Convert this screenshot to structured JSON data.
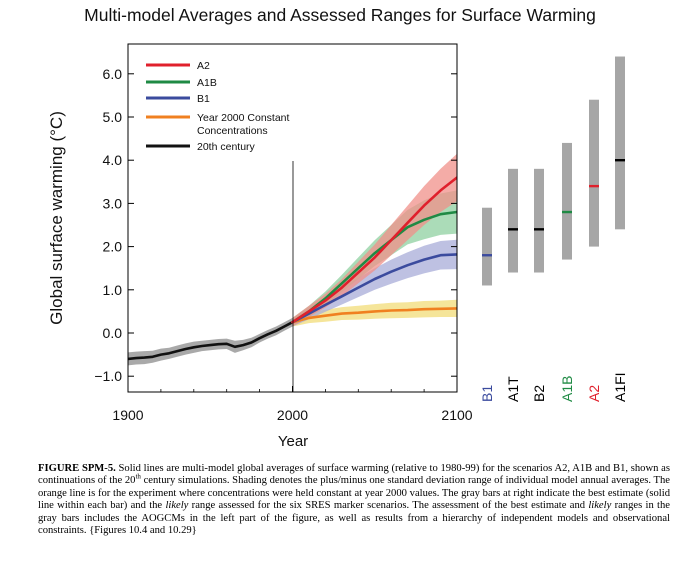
{
  "chart_data": {
    "type": "line",
    "title": "Multi-model Averages and Assessed Ranges for Surface Warming",
    "xlabel": "Year",
    "ylabel": "Global surface warming (°C)",
    "xlim": [
      1900,
      2100
    ],
    "ylim": [
      -1.3,
      6.9
    ],
    "x_ticks": [
      1900,
      2000,
      2100
    ],
    "y_ticks": [
      -1.0,
      0.0,
      1.0,
      2.0,
      3.0,
      4.0,
      5.0,
      6.0
    ],
    "y_tick_labels": [
      "−1.0",
      "0.0",
      "1.0",
      "2.0",
      "3.0",
      "4.0",
      "5.0",
      "6.0"
    ],
    "grid": false,
    "legend_placement": "top-left",
    "legend": [
      {
        "label": "A2",
        "color": "#e0202c"
      },
      {
        "label": "A1B",
        "color": "#1f8a44"
      },
      {
        "label": "B1",
        "color": "#3b4b9e"
      },
      {
        "label": "Year 2000 Constant Concentrations",
        "color": "#f08020"
      },
      {
        "label": "20th century",
        "color": "#111111"
      }
    ],
    "series": [
      {
        "name": "20th century",
        "color": "#111111",
        "band_color": "#8c8c8c",
        "x": [
          1900,
          1905,
          1910,
          1915,
          1920,
          1925,
          1930,
          1935,
          1940,
          1945,
          1950,
          1955,
          1960,
          1965,
          1970,
          1975,
          1980,
          1985,
          1990,
          1995,
          2000
        ],
        "values": [
          -0.6,
          -0.58,
          -0.57,
          -0.55,
          -0.5,
          -0.47,
          -0.42,
          -0.37,
          -0.33,
          -0.3,
          -0.28,
          -0.26,
          -0.25,
          -0.32,
          -0.28,
          -0.22,
          -0.12,
          -0.03,
          0.05,
          0.15,
          0.25
        ],
        "sd": [
          0.15,
          0.15,
          0.15,
          0.14,
          0.14,
          0.13,
          0.13,
          0.13,
          0.13,
          0.12,
          0.12,
          0.12,
          0.12,
          0.14,
          0.12,
          0.11,
          0.1,
          0.1,
          0.1,
          0.1,
          0.1
        ]
      },
      {
        "name": "A2",
        "color": "#e0202c",
        "band_color": "#f0908a",
        "x": [
          2000,
          2010,
          2020,
          2030,
          2040,
          2050,
          2060,
          2070,
          2080,
          2090,
          2100
        ],
        "values": [
          0.25,
          0.5,
          0.75,
          1.05,
          1.4,
          1.75,
          2.15,
          2.55,
          2.95,
          3.3,
          3.6
        ],
        "sd": [
          0.1,
          0.13,
          0.16,
          0.2,
          0.25,
          0.3,
          0.35,
          0.4,
          0.45,
          0.5,
          0.55
        ]
      },
      {
        "name": "A1B",
        "color": "#1f8a44",
        "band_color": "#8fd0a0",
        "x": [
          2000,
          2010,
          2020,
          2030,
          2040,
          2050,
          2060,
          2070,
          2080,
          2090,
          2100
        ],
        "values": [
          0.25,
          0.5,
          0.8,
          1.15,
          1.5,
          1.85,
          2.15,
          2.45,
          2.62,
          2.75,
          2.8
        ],
        "sd": [
          0.1,
          0.13,
          0.16,
          0.2,
          0.25,
          0.3,
          0.35,
          0.4,
          0.45,
          0.48,
          0.5
        ]
      },
      {
        "name": "B1",
        "color": "#3b4b9e",
        "band_color": "#a8acd8",
        "x": [
          2000,
          2010,
          2020,
          2030,
          2040,
          2050,
          2060,
          2070,
          2080,
          2090,
          2100
        ],
        "values": [
          0.25,
          0.45,
          0.65,
          0.85,
          1.05,
          1.25,
          1.42,
          1.57,
          1.7,
          1.8,
          1.82
        ],
        "sd": [
          0.1,
          0.13,
          0.16,
          0.19,
          0.22,
          0.25,
          0.28,
          0.3,
          0.32,
          0.33,
          0.34
        ]
      },
      {
        "name": "Year 2000 Constant Concentrations",
        "color": "#f08020",
        "band_color": "#f2dc78",
        "x": [
          2000,
          2010,
          2020,
          2030,
          2040,
          2050,
          2060,
          2070,
          2080,
          2090,
          2100
        ],
        "values": [
          0.25,
          0.35,
          0.4,
          0.45,
          0.47,
          0.5,
          0.52,
          0.53,
          0.55,
          0.56,
          0.57
        ],
        "sd": [
          0.1,
          0.12,
          0.14,
          0.15,
          0.16,
          0.17,
          0.18,
          0.18,
          0.19,
          0.19,
          0.2
        ]
      }
    ],
    "range_bars": [
      {
        "label": "B1",
        "label_color": "#3b4b9e",
        "best_color": "#3b4b9e",
        "low": 1.1,
        "high": 2.9,
        "best": 1.8
      },
      {
        "label": "A1T",
        "label_color": "#000000",
        "best_color": "#000000",
        "low": 1.4,
        "high": 3.8,
        "best": 2.4
      },
      {
        "label": "B2",
        "label_color": "#000000",
        "best_color": "#000000",
        "low": 1.4,
        "high": 3.8,
        "best": 2.4
      },
      {
        "label": "A1B",
        "label_color": "#1f8a44",
        "best_color": "#1f8a44",
        "low": 1.7,
        "high": 4.4,
        "best": 2.8
      },
      {
        "label": "A2",
        "label_color": "#e0202c",
        "best_color": "#e0202c",
        "low": 2.0,
        "high": 5.4,
        "best": 3.4
      },
      {
        "label": "A1FI",
        "label_color": "#000000",
        "best_color": "#000000",
        "low": 2.4,
        "high": 6.4,
        "best": 4.0
      }
    ]
  },
  "caption": {
    "lead": "FIGURE SPM-5.",
    "part1": " Solid lines are multi-model global averages of surface warming (relative to 1980-99) for the scenarios A2, A1B and B1, shown as continuations of the 20",
    "sup": "th",
    "part2": " century simulations. Shading denotes the plus/minus one standard deviation range of individual model annual averages. The orange line is for the experiment where concentrations were held constant at year 2000 values. The gray bars at right indicate the best estimate (solid line within each bar) and the ",
    "italic1": "likely",
    "part3": " range assessed for the six SRES marker scenarios. The assessment of the best estimate and ",
    "italic2": "likely",
    "part4": " ranges in the gray bars includes the AOGCMs in the left part of the figure, as well as results from a hierarchy of independent models and observational constraints. {Figures 10.4 and 10.29}"
  }
}
